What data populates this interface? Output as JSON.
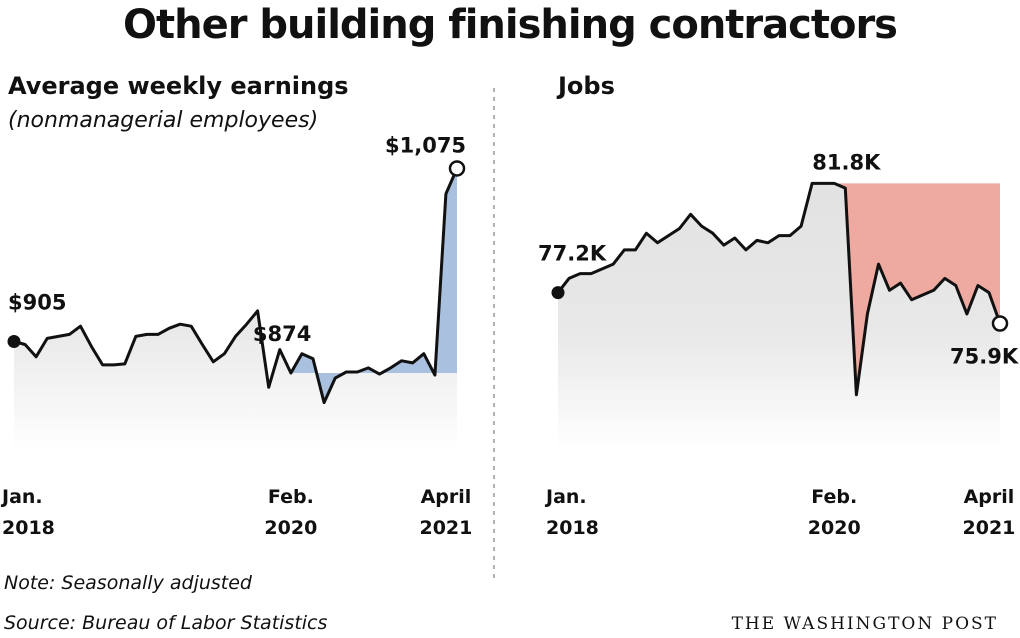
{
  "title": "Other building finishing contractors",
  "note": "Note: Seasonally adjusted",
  "source": "Source: Bureau of Labor Statistics",
  "brand": "THE WASHINGTON POST",
  "colors": {
    "line": "#111111",
    "earnings_fill": "#a9c0de",
    "jobs_fill": "#eeaaa0",
    "area": "#e2e2e2"
  },
  "chart_data": [
    {
      "type": "area",
      "title": "Average weekly earnings",
      "subtitle": "(nonmanagerial employees)",
      "ylim": [
        820,
        1100
      ],
      "x_start": "2018-01",
      "reference_value": 874,
      "annotations": [
        {
          "label": "$905",
          "index": 0
        },
        {
          "label": "$874",
          "index": 25
        },
        {
          "label": "$1,075",
          "index": 40
        }
      ],
      "x_ticks": [
        {
          "index": 0,
          "line1": "Jan.",
          "line2": "2018"
        },
        {
          "index": 25,
          "line1": "Feb.",
          "line2": "2020"
        },
        {
          "index": 39,
          "line1": "April",
          "line2": "2021"
        }
      ],
      "values": [
        905,
        902,
        890,
        908,
        910,
        912,
        920,
        900,
        882,
        882,
        883,
        910,
        912,
        912,
        918,
        922,
        920,
        902,
        885,
        893,
        910,
        922,
        935,
        860,
        897,
        874,
        893,
        888,
        845,
        869,
        875,
        875,
        879,
        873,
        879,
        886,
        884,
        893,
        872,
        1050,
        1075
      ]
    },
    {
      "type": "area",
      "title": "Jobs",
      "ylim": [
        71.5,
        83.5
      ],
      "x_start": "2018-01",
      "reference_value": 81.8,
      "annotations": [
        {
          "label": "77.2K",
          "index": 0
        },
        {
          "label": "81.8K",
          "index": 25
        },
        {
          "label": "75.9K",
          "index": 40
        }
      ],
      "x_ticks": [
        {
          "index": 0,
          "line1": "Jan.",
          "line2": "2018"
        },
        {
          "index": 25,
          "line1": "Feb.",
          "line2": "2020"
        },
        {
          "index": 39,
          "line1": "April",
          "line2": "2021"
        }
      ],
      "values": [
        77.2,
        77.8,
        78.0,
        78.0,
        78.2,
        78.4,
        79.0,
        79.0,
        79.7,
        79.3,
        79.6,
        79.9,
        80.5,
        80.0,
        79.7,
        79.2,
        79.5,
        79.0,
        79.4,
        79.3,
        79.6,
        79.6,
        80.0,
        81.8,
        81.8,
        81.8,
        81.6,
        72.9,
        76.3,
        78.4,
        77.3,
        77.6,
        76.9,
        77.1,
        77.3,
        77.8,
        77.5,
        76.3,
        77.5,
        77.2,
        75.9
      ]
    }
  ]
}
